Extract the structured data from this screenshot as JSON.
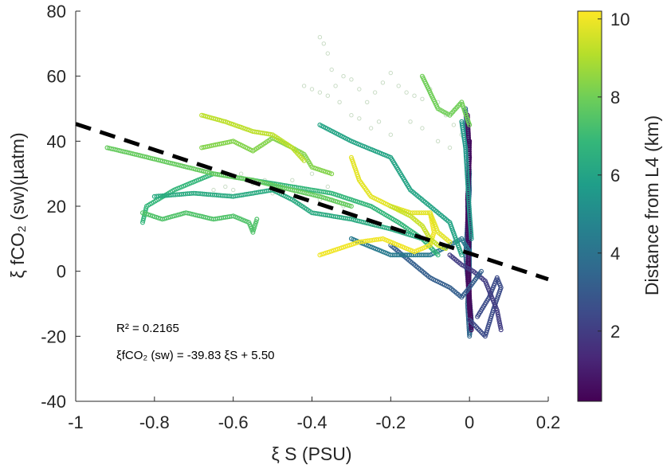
{
  "chart_data": {
    "type": "scatter",
    "xlabel": "ξ S (PSU)",
    "ylabel": "ξ fCO₂ (sw)(µatm)",
    "xlim": [
      -1,
      0.2
    ],
    "ylim": [
      -40,
      80
    ],
    "xticks": [
      "-1",
      "-0.8",
      "-0.6",
      "-0.4",
      "-0.2",
      "0",
      "0.2"
    ],
    "yticks": [
      "-40",
      "-20",
      "0",
      "20",
      "40",
      "60",
      "80"
    ],
    "colorbar": {
      "label": "Distance from L4 (km)",
      "ticks": [
        "2",
        "4",
        "6",
        "8",
        "10"
      ],
      "range": [
        0.2,
        10.2
      ],
      "colormap": [
        "#440154",
        "#482878",
        "#3e4a89",
        "#31688e",
        "#26828e",
        "#1f9e89",
        "#35b779",
        "#6ece58",
        "#b5de2b",
        "#fde725"
      ]
    },
    "annotation_r2": "R² = 0.2165",
    "annotation_eq": "ξfCO₂ (sw) = -39.83 ξS + 5.50",
    "fit": {
      "slope": -39.83,
      "intercept": 5.5,
      "x_range": [
        -1,
        0.2
      ]
    },
    "series": [
      {
        "d": 3.5,
        "pts": [
          [
            -0.01,
            50
          ],
          [
            -0.005,
            40
          ],
          [
            0,
            30
          ],
          [
            -0.005,
            20
          ],
          [
            0,
            10
          ],
          [
            0,
            0
          ],
          [
            -0.005,
            -10
          ],
          [
            0,
            -20
          ],
          [
            0.005,
            -15
          ],
          [
            -0.01,
            5
          ],
          [
            0,
            25
          ],
          [
            -0.005,
            45
          ]
        ]
      },
      {
        "d": 0.5,
        "pts": [
          [
            -0.005,
            48
          ],
          [
            0,
            35
          ],
          [
            -0.005,
            22
          ],
          [
            0,
            12
          ],
          [
            -0.005,
            0
          ],
          [
            0,
            -12
          ],
          [
            0.005,
            -18
          ],
          [
            0,
            -8
          ],
          [
            -0.005,
            15
          ],
          [
            0,
            40
          ]
        ]
      },
      {
        "d": 2.5,
        "pts": [
          [
            0.0,
            -15
          ],
          [
            0.04,
            -20
          ],
          [
            0.06,
            -12
          ],
          [
            0.08,
            -5
          ],
          [
            0.07,
            -2
          ],
          [
            0.05,
            -8
          ],
          [
            0.02,
            -14
          ]
        ]
      },
      {
        "d": 2.0,
        "pts": [
          [
            -0.05,
            5
          ],
          [
            -0.02,
            2
          ],
          [
            0.01,
            0
          ],
          [
            0.04,
            -3
          ],
          [
            0.07,
            -12
          ],
          [
            0.08,
            -18
          ]
        ]
      },
      {
        "d": 3.2,
        "pts": [
          [
            -0.2,
            8
          ],
          [
            -0.15,
            3
          ],
          [
            -0.1,
            -2
          ],
          [
            -0.05,
            -5
          ],
          [
            -0.02,
            -8
          ],
          [
            0.0,
            -5
          ],
          [
            0.03,
            0
          ]
        ]
      },
      {
        "d": 4.3,
        "pts": [
          [
            -0.3,
            10
          ],
          [
            -0.2,
            5
          ],
          [
            -0.1,
            5
          ],
          [
            -0.05,
            8
          ],
          [
            -0.02,
            10
          ],
          [
            0.0,
            6
          ]
        ]
      },
      {
        "d": 6.0,
        "pts": [
          [
            -0.38,
            45
          ],
          [
            -0.3,
            40
          ],
          [
            -0.2,
            35
          ],
          [
            -0.15,
            25
          ],
          [
            -0.1,
            20
          ],
          [
            -0.05,
            15
          ],
          [
            -0.02,
            5
          ]
        ]
      },
      {
        "d": 5.5,
        "pts": [
          [
            -0.02,
            46
          ],
          [
            -0.01,
            38
          ],
          [
            -0.005,
            28
          ],
          [
            0,
            18
          ],
          [
            0.005,
            10
          ]
        ]
      },
      {
        "d": 6.8,
        "pts": [
          [
            -0.83,
            15
          ],
          [
            -0.82,
            20
          ],
          [
            -0.75,
            25
          ],
          [
            -0.65,
            30
          ],
          [
            -0.55,
            28
          ],
          [
            -0.45,
            26
          ],
          [
            -0.35,
            24
          ],
          [
            -0.25,
            20
          ],
          [
            -0.18,
            15
          ],
          [
            -0.12,
            10
          ],
          [
            -0.08,
            5
          ]
        ]
      },
      {
        "d": 6.3,
        "pts": [
          [
            -0.8,
            23
          ],
          [
            -0.7,
            24
          ],
          [
            -0.6,
            23
          ],
          [
            -0.5,
            25
          ],
          [
            -0.45,
            22
          ],
          [
            -0.4,
            18
          ],
          [
            -0.3,
            16
          ],
          [
            -0.2,
            13
          ],
          [
            -0.12,
            10
          ]
        ]
      },
      {
        "d": 7.4,
        "pts": [
          [
            -0.83,
            18
          ],
          [
            -0.78,
            16
          ],
          [
            -0.72,
            18
          ],
          [
            -0.65,
            16
          ],
          [
            -0.6,
            17
          ],
          [
            -0.56,
            15
          ],
          [
            -0.55,
            12
          ],
          [
            -0.54,
            16
          ]
        ]
      },
      {
        "d": 7.8,
        "pts": [
          [
            -0.92,
            38
          ],
          [
            -0.85,
            36
          ],
          [
            -0.75,
            33
          ],
          [
            -0.65,
            30
          ],
          [
            -0.55,
            28
          ],
          [
            -0.45,
            25
          ],
          [
            -0.38,
            23
          ],
          [
            -0.3,
            20
          ]
        ]
      },
      {
        "d": 8.3,
        "pts": [
          [
            -0.68,
            38
          ],
          [
            -0.6,
            40
          ],
          [
            -0.55,
            37
          ],
          [
            -0.5,
            41
          ],
          [
            -0.45,
            38
          ],
          [
            -0.42,
            36
          ],
          [
            -0.4,
            32
          ],
          [
            -0.35,
            30
          ]
        ]
      },
      {
        "d": 9.2,
        "pts": [
          [
            -0.68,
            48
          ],
          [
            -0.62,
            46
          ],
          [
            -0.55,
            43
          ],
          [
            -0.5,
            42
          ],
          [
            -0.45,
            38
          ],
          [
            -0.42,
            34
          ]
        ]
      },
      {
        "d": 8.0,
        "pts": [
          [
            -0.12,
            60
          ],
          [
            -0.1,
            55
          ],
          [
            -0.08,
            50
          ],
          [
            -0.05,
            48
          ],
          [
            -0.02,
            52
          ],
          [
            0.0,
            45
          ]
        ]
      },
      {
        "d": 10.0,
        "pts": [
          [
            -0.38,
            5
          ],
          [
            -0.33,
            7
          ],
          [
            -0.28,
            9
          ],
          [
            -0.22,
            10
          ],
          [
            -0.18,
            8
          ],
          [
            -0.14,
            6
          ],
          [
            -0.1,
            8
          ],
          [
            -0.09,
            12
          ],
          [
            -0.1,
            18
          ]
        ]
      },
      {
        "d": 9.8,
        "pts": [
          [
            -0.3,
            35
          ],
          [
            -0.28,
            28
          ],
          [
            -0.25,
            23
          ],
          [
            -0.2,
            20
          ],
          [
            -0.15,
            18
          ],
          [
            -0.1,
            18
          ],
          [
            -0.08,
            12
          ],
          [
            -0.05,
            9
          ]
        ]
      },
      {
        "d": 9.4,
        "pts": [
          [
            -0.2,
            20
          ],
          [
            -0.15,
            17
          ],
          [
            -0.12,
            14
          ],
          [
            -0.1,
            10
          ],
          [
            -0.08,
            8
          ],
          [
            -0.06,
            7
          ]
        ]
      }
    ],
    "faint_series": {
      "color": "#c9dcc5",
      "pts": [
        [
          -0.42,
          57
        ],
        [
          -0.4,
          56
        ],
        [
          -0.38,
          55
        ],
        [
          -0.36,
          54
        ],
        [
          -0.34,
          57
        ],
        [
          -0.32,
          60
        ],
        [
          -0.3,
          59
        ],
        [
          -0.28,
          56
        ],
        [
          -0.26,
          52
        ],
        [
          -0.24,
          55
        ],
        [
          -0.22,
          58
        ],
        [
          -0.2,
          61
        ],
        [
          -0.18,
          57
        ],
        [
          -0.16,
          55
        ],
        [
          -0.14,
          54
        ],
        [
          -0.12,
          53
        ],
        [
          -0.1,
          56
        ],
        [
          -0.08,
          52
        ],
        [
          -0.06,
          48
        ],
        [
          -0.04,
          45
        ],
        [
          -0.02,
          42
        ],
        [
          -0.01,
          38
        ],
        [
          -0.38,
          72
        ],
        [
          -0.37,
          70
        ],
        [
          -0.36,
          67
        ],
        [
          -0.35,
          62
        ],
        [
          -0.33,
          52
        ],
        [
          -0.3,
          48
        ],
        [
          -0.28,
          47
        ],
        [
          -0.25,
          44
        ],
        [
          -0.23,
          46
        ],
        [
          -0.2,
          42
        ],
        [
          -0.15,
          46
        ],
        [
          -0.12,
          44
        ],
        [
          -0.08,
          40
        ],
        [
          -0.05,
          38
        ],
        [
          -0.4,
          30
        ],
        [
          -0.45,
          28
        ],
        [
          -0.5,
          24
        ],
        [
          -0.55,
          27
        ],
        [
          -0.6,
          25
        ],
        [
          -0.62,
          26
        ],
        [
          -0.65,
          25
        ],
        [
          -0.58,
          30
        ],
        [
          -0.52,
          28
        ],
        [
          -0.48,
          26
        ],
        [
          -0.44,
          24
        ],
        [
          -0.38,
          22
        ],
        [
          -0.35,
          22
        ],
        [
          -0.32,
          20
        ],
        [
          -0.36,
          26
        ]
      ]
    }
  }
}
